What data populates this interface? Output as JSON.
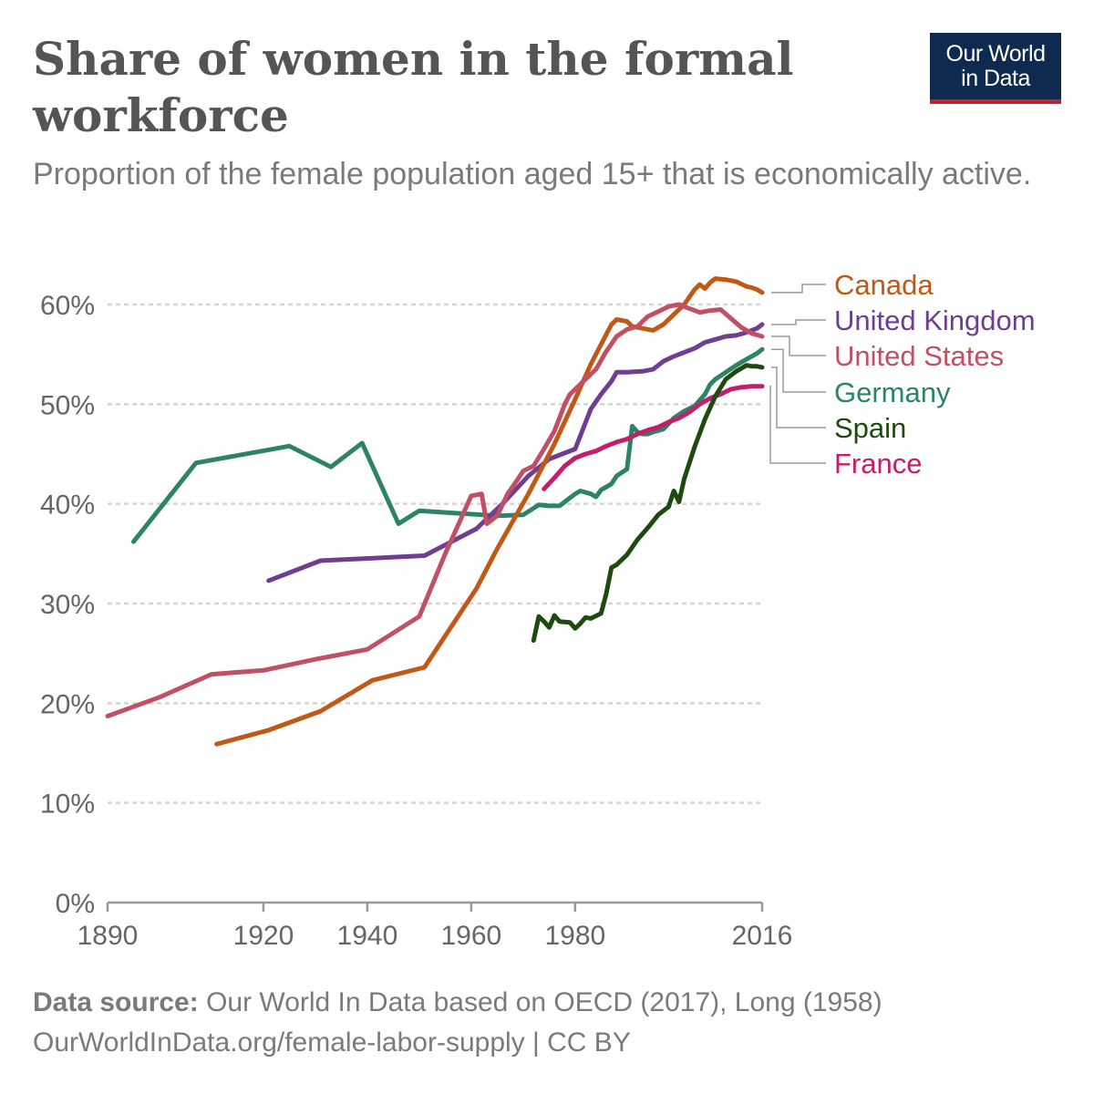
{
  "header": {
    "title": "Share of women in the formal workforce",
    "subtitle": "Proportion of the female population aged 15+ that is economically active."
  },
  "logo": {
    "line1": "Our World",
    "line2": "in Data",
    "bg_color": "#0e2a4f",
    "accent_color": "#c8202f"
  },
  "footer": {
    "source_label": "Data source:",
    "source_text": "Our World In Data based on OECD (2017), Long (1958)",
    "url_license": "OurWorldInData.org/female-labor-supply | CC BY"
  },
  "chart_data": {
    "type": "line",
    "title": "Share of women in the formal workforce",
    "subtitle": "Proportion of the female population aged 15+ that is economically active.",
    "xlabel": "",
    "ylabel": "",
    "xlim": [
      1890,
      2016
    ],
    "ylim": [
      0,
      60
    ],
    "x_ticks": [
      {
        "value": 1890,
        "label": "1890"
      },
      {
        "value": 1920,
        "label": "1920"
      },
      {
        "value": 1940,
        "label": "1940"
      },
      {
        "value": 1960,
        "label": "1960"
      },
      {
        "value": 1980,
        "label": "1980"
      },
      {
        "value": 2016,
        "label": "2016"
      }
    ],
    "y_ticks": [
      {
        "value": 0,
        "label": "0%"
      },
      {
        "value": 10,
        "label": "10%"
      },
      {
        "value": 20,
        "label": "20%"
      },
      {
        "value": 30,
        "label": "30%"
      },
      {
        "value": 40,
        "label": "40%"
      },
      {
        "value": 50,
        "label": "50%"
      },
      {
        "value": 60,
        "label": "60%"
      }
    ],
    "grid": "horizontal dashed",
    "legend": "right, labels at line ends",
    "series": [
      {
        "name": "Canada",
        "color": "#c05917",
        "points": [
          [
            1911,
            15.9
          ],
          [
            1921,
            17.3
          ],
          [
            1931,
            19.2
          ],
          [
            1941,
            22.3
          ],
          [
            1951,
            23.6
          ],
          [
            1961,
            31.5
          ],
          [
            1965,
            35.5
          ],
          [
            1971,
            41
          ],
          [
            1976,
            46
          ],
          [
            1980,
            50.5
          ],
          [
            1983,
            54
          ],
          [
            1986,
            57
          ],
          [
            1987,
            58
          ],
          [
            1988,
            58.5
          ],
          [
            1989,
            58.4
          ],
          [
            1990,
            58.3
          ],
          [
            1991,
            57.8
          ],
          [
            1993,
            57.6
          ],
          [
            1995,
            57.4
          ],
          [
            1997,
            58
          ],
          [
            1999,
            59
          ],
          [
            2001,
            60
          ],
          [
            2003,
            61.5
          ],
          [
            2004,
            62
          ],
          [
            2005,
            61.6
          ],
          [
            2006,
            62.2
          ],
          [
            2007,
            62.6
          ],
          [
            2009,
            62.5
          ],
          [
            2011,
            62.3
          ],
          [
            2013,
            61.8
          ],
          [
            2014,
            61.7
          ],
          [
            2015,
            61.5
          ],
          [
            2016,
            61.2
          ]
        ]
      },
      {
        "name": "United Kingdom",
        "color": "#6d3e91",
        "points": [
          [
            1921,
            32.3
          ],
          [
            1931,
            34.3
          ],
          [
            1951,
            34.8
          ],
          [
            1961,
            37.5
          ],
          [
            1966,
            40
          ],
          [
            1971,
            42.8
          ],
          [
            1975,
            44.5
          ],
          [
            1980,
            45.5
          ],
          [
            1983,
            49.5
          ],
          [
            1985,
            51
          ],
          [
            1987,
            52.3
          ],
          [
            1988,
            53.2
          ],
          [
            1990,
            53.2
          ],
          [
            1993,
            53.3
          ],
          [
            1995,
            53.5
          ],
          [
            1997,
            54.3
          ],
          [
            1999,
            54.8
          ],
          [
            2001,
            55.2
          ],
          [
            2003,
            55.6
          ],
          [
            2005,
            56.2
          ],
          [
            2007,
            56.5
          ],
          [
            2009,
            56.8
          ],
          [
            2011,
            56.9
          ],
          [
            2013,
            57.2
          ],
          [
            2015,
            57.6
          ],
          [
            2016,
            58
          ]
        ]
      },
      {
        "name": "United States",
        "color": "#c15065",
        "points": [
          [
            1890,
            18.7
          ],
          [
            1900,
            20.6
          ],
          [
            1910,
            22.9
          ],
          [
            1920,
            23.3
          ],
          [
            1930,
            24.4
          ],
          [
            1940,
            25.4
          ],
          [
            1950,
            28.7
          ],
          [
            1955,
            35
          ],
          [
            1960,
            40.8
          ],
          [
            1962,
            41
          ],
          [
            1963,
            38
          ],
          [
            1965,
            38.8
          ],
          [
            1967,
            41
          ],
          [
            1969,
            42.5
          ],
          [
            1970,
            43.3
          ],
          [
            1972,
            43.8
          ],
          [
            1974,
            45.5
          ],
          [
            1976,
            47.3
          ],
          [
            1978,
            50
          ],
          [
            1979,
            51
          ],
          [
            1980,
            51.5
          ],
          [
            1982,
            52.5
          ],
          [
            1984,
            53.5
          ],
          [
            1986,
            55.3
          ],
          [
            1988,
            56.8
          ],
          [
            1990,
            57.5
          ],
          [
            1992,
            57.8
          ],
          [
            1994,
            58.8
          ],
          [
            1996,
            59.3
          ],
          [
            1998,
            59.8
          ],
          [
            2000,
            60
          ],
          [
            2002,
            59.6
          ],
          [
            2004,
            59.2
          ],
          [
            2006,
            59.4
          ],
          [
            2008,
            59.5
          ],
          [
            2010,
            58.6
          ],
          [
            2012,
            57.7
          ],
          [
            2014,
            57.1
          ],
          [
            2016,
            56.8
          ]
        ]
      },
      {
        "name": "Germany",
        "color": "#2c8465",
        "points": [
          [
            1895,
            36.2
          ],
          [
            1907,
            44.1
          ],
          [
            1925,
            45.8
          ],
          [
            1933,
            43.7
          ],
          [
            1939,
            46.1
          ],
          [
            1946,
            38
          ],
          [
            1950,
            39.3
          ],
          [
            1965,
            38.8
          ],
          [
            1970,
            38.9
          ],
          [
            1973,
            39.9
          ],
          [
            1975,
            39.8
          ],
          [
            1977,
            39.8
          ],
          [
            1980,
            41
          ],
          [
            1981,
            41.3
          ],
          [
            1983,
            41
          ],
          [
            1984,
            40.7
          ],
          [
            1985,
            41.4
          ],
          [
            1987,
            42
          ],
          [
            1988,
            42.8
          ],
          [
            1990,
            43.5
          ],
          [
            1991,
            47.8
          ],
          [
            1992,
            47.2
          ],
          [
            1993,
            47
          ],
          [
            1994,
            47
          ],
          [
            1995,
            47.2
          ],
          [
            1997,
            47.5
          ],
          [
            1999,
            48.6
          ],
          [
            2001,
            49.3
          ],
          [
            2003,
            49.8
          ],
          [
            2005,
            51
          ],
          [
            2006,
            52
          ],
          [
            2007,
            52.5
          ],
          [
            2009,
            53.2
          ],
          [
            2011,
            53.9
          ],
          [
            2013,
            54.5
          ],
          [
            2014,
            54.8
          ],
          [
            2015,
            55.1
          ],
          [
            2016,
            55.5
          ]
        ]
      },
      {
        "name": "Spain",
        "color": "#1f4a0f",
        "points": [
          [
            1972,
            26.3
          ],
          [
            1973,
            28.7
          ],
          [
            1974,
            28.2
          ],
          [
            1975,
            27.6
          ],
          [
            1976,
            28.8
          ],
          [
            1977,
            28.2
          ],
          [
            1979,
            28.1
          ],
          [
            1980,
            27.5
          ],
          [
            1981,
            28
          ],
          [
            1982,
            28.6
          ],
          [
            1983,
            28.5
          ],
          [
            1985,
            29
          ],
          [
            1986,
            31
          ],
          [
            1987,
            33.6
          ],
          [
            1988,
            33.9
          ],
          [
            1990,
            34.9
          ],
          [
            1992,
            36.4
          ],
          [
            1994,
            37.6
          ],
          [
            1996,
            38.9
          ],
          [
            1998,
            39.7
          ],
          [
            1999,
            41.3
          ],
          [
            2000,
            40.2
          ],
          [
            2001,
            42.5
          ],
          [
            2003,
            45.7
          ],
          [
            2005,
            48.5
          ],
          [
            2007,
            50.8
          ],
          [
            2009,
            52.5
          ],
          [
            2011,
            53.3
          ],
          [
            2013,
            53.9
          ],
          [
            2014,
            53.8
          ],
          [
            2015,
            53.8
          ],
          [
            2016,
            53.7
          ]
        ]
      },
      {
        "name": "France",
        "color": "#c31d6b",
        "points": [
          [
            1974,
            41.5
          ],
          [
            1976,
            42.6
          ],
          [
            1978,
            43.8
          ],
          [
            1980,
            44.6
          ],
          [
            1982,
            45
          ],
          [
            1984,
            45.3
          ],
          [
            1986,
            45.8
          ],
          [
            1988,
            46.2
          ],
          [
            1990,
            46.5
          ],
          [
            1992,
            47
          ],
          [
            1994,
            47.4
          ],
          [
            1996,
            47.7
          ],
          [
            1998,
            48.2
          ],
          [
            2000,
            48.6
          ],
          [
            2002,
            49.2
          ],
          [
            2004,
            50
          ],
          [
            2006,
            50.6
          ],
          [
            2008,
            51
          ],
          [
            2010,
            51.5
          ],
          [
            2012,
            51.7
          ],
          [
            2014,
            51.8
          ],
          [
            2016,
            51.8
          ]
        ]
      }
    ]
  }
}
